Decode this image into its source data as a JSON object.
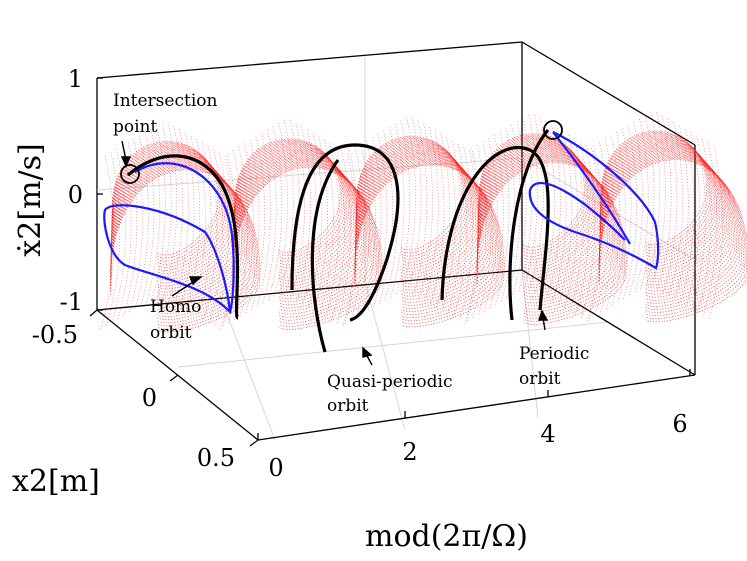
{
  "chart_data": {
    "type": "surface3d",
    "title": "",
    "xlabel": "mod(2π/Ω)",
    "ylabel": "x2[m]",
    "zlabel": "ẋ2[m/s]",
    "x_ticks": [
      "0",
      "2",
      "4",
      "6"
    ],
    "y_ticks": [
      "-0.5",
      "0",
      "0.5"
    ],
    "z_ticks": [
      "1",
      "0",
      "-1"
    ],
    "xlim": [
      0,
      6.28
    ],
    "ylim": [
      -0.5,
      0.5
    ],
    "zlim": [
      -1,
      1
    ],
    "grid": true,
    "series": [
      {
        "name": "Quasi-periodic orbit",
        "color": "#ff2020",
        "style": "mesh",
        "x_centers": [
          0.8,
          2.1,
          3.4,
          4.7,
          6.0
        ]
      },
      {
        "name": "Periodic orbit",
        "color": "#000000",
        "style": "line",
        "x_centers": [
          0.5,
          2.1,
          3.6,
          5.5
        ]
      },
      {
        "name": "Homo orbit",
        "color": "#1a1aff",
        "style": "line",
        "x_centers": [
          0.2,
          6.1
        ]
      }
    ],
    "annotations": [
      {
        "id": "intersection",
        "lines": [
          "Intersection",
          "point"
        ]
      },
      {
        "id": "homo",
        "lines": [
          "Homo",
          "orbit"
        ]
      },
      {
        "id": "quasi",
        "lines": [
          "Quasi-periodic",
          "orbit"
        ]
      },
      {
        "id": "periodic",
        "lines": [
          "Periodic",
          "orbit"
        ]
      }
    ]
  },
  "labels": {
    "x_tick_0": "0",
    "x_tick_1": "2",
    "x_tick_2": "4",
    "x_tick_3": "6",
    "y_tick_0": "-0.5",
    "y_tick_1": "0",
    "y_tick_2": "0.5",
    "z_tick_0": "1",
    "z_tick_1": "0",
    "z_tick_2": "-1",
    "xlabel": "mod(2π/Ω)",
    "ylabel": "x2[m]",
    "zlabel": "ẋ2[m/s]",
    "annot_intersection_1": "Intersection",
    "annot_intersection_2": "point",
    "annot_homo_1": "Homo",
    "annot_homo_2": "orbit",
    "annot_quasi_1": "Quasi-periodic",
    "annot_quasi_2": "orbit",
    "annot_periodic_1": "Periodic",
    "annot_periodic_2": "orbit"
  },
  "colors": {
    "mesh": "#ff2020",
    "periodic": "#000000",
    "homo": "#1a1aff"
  }
}
